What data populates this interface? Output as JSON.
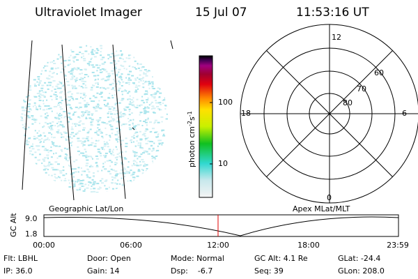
{
  "header": {
    "title": "Ultraviolet Imager",
    "date": "15 Jul 07",
    "time": "11:53:16 UT"
  },
  "colorbar": {
    "label_parts": [
      "photon cm",
      "-2",
      "s",
      "-1"
    ],
    "ticks": [
      "100",
      "10"
    ]
  },
  "polar": {
    "clock_labels": [
      "12",
      "18",
      "6",
      "0"
    ],
    "lat_labels": [
      "60",
      "70",
      "80"
    ]
  },
  "orbit": {
    "left_label": "Geographic Lat/Lon",
    "right_label": "Apex MLat/MLT",
    "axis_label": "GC Alt",
    "yticks": [
      "9.0",
      "1.8"
    ],
    "xticks": [
      "00:00",
      "06:00",
      "12:00",
      "18:00",
      "23:59"
    ]
  },
  "info": {
    "rows": [
      [
        "Flt: LBHL",
        "Door: Open",
        "Mode: Normal",
        "GC Alt: 4.1 Re",
        "GLat: -24.4"
      ],
      [
        "IP: 36.0",
        "Gain: 14",
        "Dsp:    -6.7",
        "Seq: 39",
        "GLon: 208.0"
      ]
    ]
  }
}
